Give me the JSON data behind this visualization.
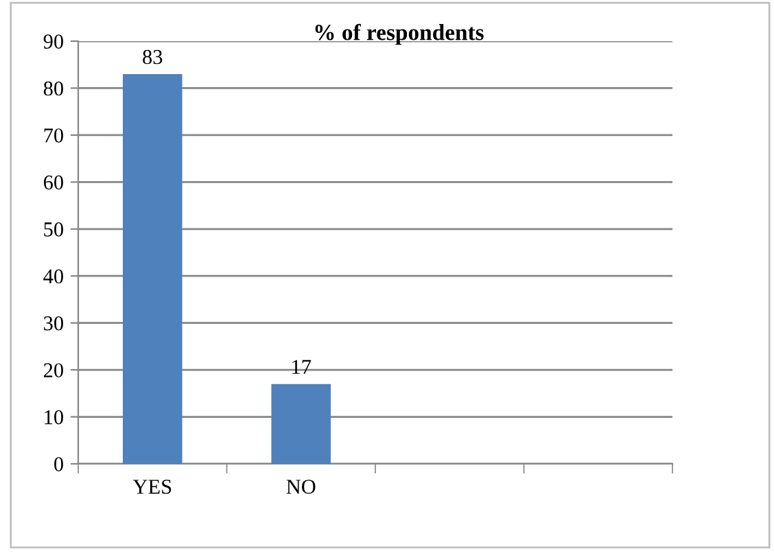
{
  "chart_data": {
    "type": "bar",
    "title": "% of respondents",
    "categories": [
      "YES",
      "NO",
      null,
      null
    ],
    "values": [
      83,
      17,
      null,
      null
    ],
    "color": "#4f81bd",
    "ylim": [
      0,
      90
    ],
    "yticks": [
      0,
      10,
      20,
      30,
      40,
      50,
      60,
      70,
      80,
      90
    ],
    "grid": "y",
    "data_labels": true,
    "legend": false
  }
}
